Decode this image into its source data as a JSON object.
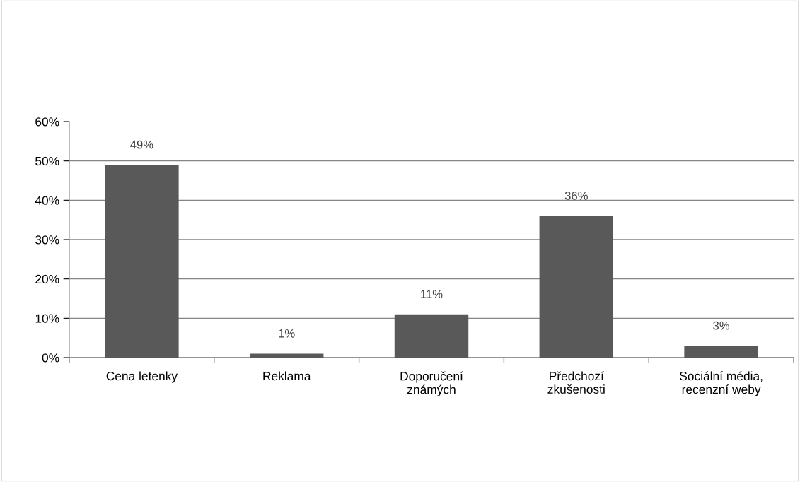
{
  "chart_data": {
    "type": "bar",
    "categories": [
      "Cena letenky",
      "Reklama",
      "Doporučení\nznámých",
      "Předchozí\nzkušenosti",
      "Sociální média,\nrecenzní weby"
    ],
    "values": [
      49,
      1,
      11,
      36,
      3
    ],
    "value_labels": [
      "49%",
      "1%",
      "11%",
      "36%",
      "3%"
    ],
    "color": "#595959",
    "ylim": [
      0,
      60
    ],
    "yticks": [
      {
        "value": 0,
        "label": "0%"
      },
      {
        "value": 10,
        "label": "10%"
      },
      {
        "value": 20,
        "label": "20%"
      },
      {
        "value": 30,
        "label": "30%"
      },
      {
        "value": 40,
        "label": "40%"
      },
      {
        "value": 50,
        "label": "50%"
      },
      {
        "value": 60,
        "label": "60%"
      }
    ],
    "grid": "y"
  }
}
